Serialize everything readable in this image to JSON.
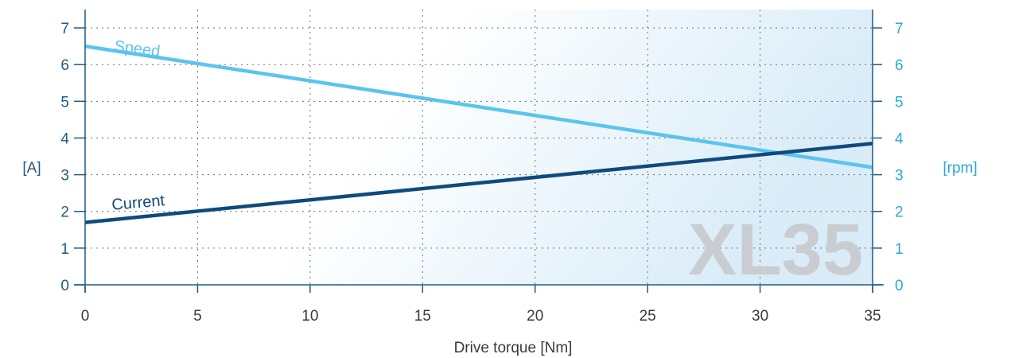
{
  "chart_data": {
    "type": "line",
    "xlabel": "Drive torque [Nm]",
    "ylabel_left": "[A]",
    "ylabel_right": "[rpm]",
    "xlim": [
      0,
      35
    ],
    "ylim_left": [
      0,
      7.5
    ],
    "ylim_right": [
      0,
      7.5
    ],
    "x_ticks": [
      "0",
      "5",
      "10",
      "15",
      "20",
      "25",
      "30",
      "35"
    ],
    "y_ticks_left": [
      "0",
      "1",
      "2",
      "3",
      "4",
      "5",
      "6",
      "7"
    ],
    "y_ticks_right": [
      "0",
      "1",
      "2",
      "3",
      "4",
      "5",
      "6",
      "7"
    ],
    "grid": true,
    "watermark": "XL35",
    "series": [
      {
        "name": "Speed",
        "axis": "right",
        "color": "#5bc4ec",
        "x": [
          0,
          35
        ],
        "y": [
          6.5,
          3.2
        ]
      },
      {
        "name": "Current",
        "axis": "left",
        "color": "#0f4a7c",
        "x": [
          0,
          35
        ],
        "y": [
          1.7,
          3.85
        ]
      }
    ]
  },
  "colors": {
    "left_axis": "#1f5b86",
    "right_axis": "#29a9df",
    "gradient_end": "#d9ecf8"
  }
}
